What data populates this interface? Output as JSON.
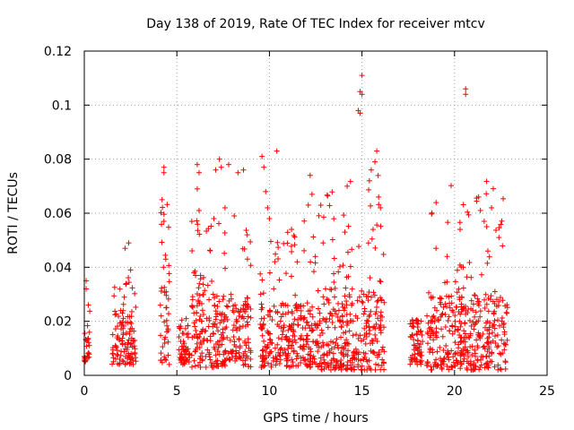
{
  "chart_data": {
    "type": "scatter",
    "title": "Day 138 of 2019, Rate Of TEC Index for receiver mtcv",
    "xlabel": "GPS time / hours",
    "ylabel": "ROTI / TECUs",
    "xlim": [
      0,
      25
    ],
    "ylim": [
      0,
      0.12
    ],
    "x_ticks": [
      0,
      5,
      10,
      15,
      20,
      25
    ],
    "x_tick_labels": [
      "0",
      "5",
      "10",
      "15",
      "20",
      "25"
    ],
    "y_ticks": [
      0,
      0.02,
      0.04,
      0.06,
      0.08,
      0.1,
      0.12
    ],
    "y_tick_labels": [
      "0",
      "0.02",
      "0.04",
      "0.06",
      "0.08",
      "0.1",
      "0.12"
    ],
    "grid": true,
    "marker": "+",
    "color": "#ff0000",
    "clusters": [
      {
        "x": [
          0.0,
          0.3
        ],
        "y_typical": [
          0.005,
          0.017
        ],
        "peak": 0.035
      },
      {
        "x": [
          1.5,
          2.8
        ],
        "y_typical": [
          0.004,
          0.024
        ],
        "peak": 0.049
      },
      {
        "x": [
          4.1,
          4.6
        ],
        "y_typical": [
          0.004,
          0.05
        ],
        "peak": 0.077
      },
      {
        "x": [
          5.1,
          5.7
        ],
        "y_typical": [
          0.004,
          0.022
        ],
        "peak": 0.031
      },
      {
        "x": [
          5.8,
          9.0
        ],
        "y_typical": [
          0.003,
          0.03
        ],
        "peak": 0.08
      },
      {
        "x": [
          9.5,
          12.6
        ],
        "y_typical": [
          0.003,
          0.027
        ],
        "peak": 0.083
      },
      {
        "x": [
          12.6,
          16.2
        ],
        "y_typical": [
          0.002,
          0.033
        ],
        "peak": 0.111
      },
      {
        "x": [
          17.6,
          18.3
        ],
        "y_typical": [
          0.004,
          0.02
        ],
        "peak": 0.021
      },
      {
        "x": [
          18.5,
          22.9
        ],
        "y_typical": [
          0.002,
          0.03
        ],
        "peak": 0.106
      }
    ],
    "peaks": [
      {
        "x": 0.1,
        "y": 0.035
      },
      {
        "x": 0.1,
        "y": 0.032
      },
      {
        "x": 2.2,
        "y": 0.047
      },
      {
        "x": 2.4,
        "y": 0.049
      },
      {
        "x": 2.5,
        "y": 0.039
      },
      {
        "x": 4.3,
        "y": 0.077
      },
      {
        "x": 4.3,
        "y": 0.075
      },
      {
        "x": 4.2,
        "y": 0.065
      },
      {
        "x": 4.3,
        "y": 0.057
      },
      {
        "x": 4.4,
        "y": 0.043
      },
      {
        "x": 6.1,
        "y": 0.078
      },
      {
        "x": 6.2,
        "y": 0.075
      },
      {
        "x": 6.1,
        "y": 0.069
      },
      {
        "x": 6.2,
        "y": 0.061
      },
      {
        "x": 7.1,
        "y": 0.076
      },
      {
        "x": 7.3,
        "y": 0.08
      },
      {
        "x": 7.4,
        "y": 0.077
      },
      {
        "x": 7.8,
        "y": 0.078
      },
      {
        "x": 8.3,
        "y": 0.075
      },
      {
        "x": 8.6,
        "y": 0.076
      },
      {
        "x": 7.0,
        "y": 0.058
      },
      {
        "x": 7.6,
        "y": 0.062
      },
      {
        "x": 8.1,
        "y": 0.059
      },
      {
        "x": 8.8,
        "y": 0.052
      },
      {
        "x": 9.6,
        "y": 0.081
      },
      {
        "x": 9.7,
        "y": 0.077
      },
      {
        "x": 9.8,
        "y": 0.068
      },
      {
        "x": 10.4,
        "y": 0.083
      },
      {
        "x": 9.9,
        "y": 0.062
      },
      {
        "x": 10.0,
        "y": 0.058
      },
      {
        "x": 12.2,
        "y": 0.074
      },
      {
        "x": 12.3,
        "y": 0.067
      },
      {
        "x": 12.1,
        "y": 0.063
      },
      {
        "x": 11.5,
        "y": 0.042
      },
      {
        "x": 12.9,
        "y": 0.049
      },
      {
        "x": 14.2,
        "y": 0.07
      },
      {
        "x": 15.0,
        "y": 0.111
      },
      {
        "x": 14.9,
        "y": 0.105
      },
      {
        "x": 15.0,
        "y": 0.104
      },
      {
        "x": 14.8,
        "y": 0.098
      },
      {
        "x": 14.9,
        "y": 0.097
      },
      {
        "x": 15.8,
        "y": 0.083
      },
      {
        "x": 15.7,
        "y": 0.079
      },
      {
        "x": 15.5,
        "y": 0.076
      },
      {
        "x": 15.4,
        "y": 0.072
      },
      {
        "x": 15.9,
        "y": 0.066
      },
      {
        "x": 15.6,
        "y": 0.054
      },
      {
        "x": 16.0,
        "y": 0.062
      },
      {
        "x": 20.6,
        "y": 0.106
      },
      {
        "x": 20.6,
        "y": 0.104
      },
      {
        "x": 21.3,
        "y": 0.066
      },
      {
        "x": 21.4,
        "y": 0.061
      },
      {
        "x": 22.0,
        "y": 0.062
      },
      {
        "x": 21.6,
        "y": 0.057
      },
      {
        "x": 20.3,
        "y": 0.054
      },
      {
        "x": 22.4,
        "y": 0.051
      },
      {
        "x": 19.0,
        "y": 0.047
      },
      {
        "x": 21.8,
        "y": 0.046
      },
      {
        "x": 19.6,
        "y": 0.044
      }
    ]
  }
}
